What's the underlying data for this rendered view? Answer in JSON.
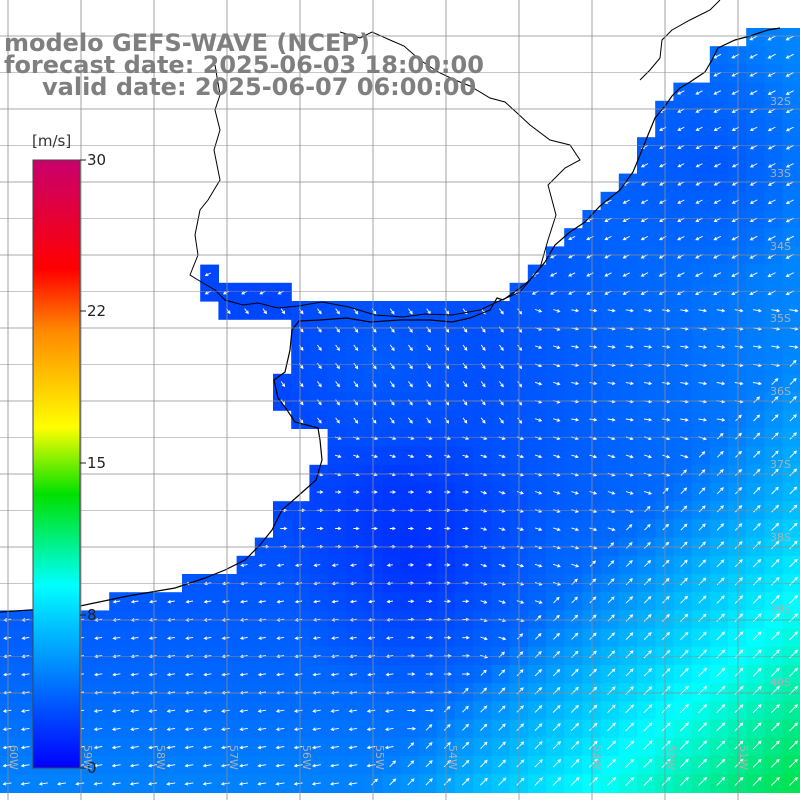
{
  "title": {
    "line1": "modelo GEFS-WAVE (NCEP)",
    "line2": "forecast date: 2025-06-03 18:00:00",
    "line3": "valid date: 2025-06-07 06:00:00"
  },
  "colorbar": {
    "unit": "[m/s]",
    "min": 0,
    "max": 30,
    "ticks": [
      "30",
      "22",
      "15",
      "8",
      "0"
    ],
    "colors": [
      "#0000ff",
      "#00b4ff",
      "#00ffff",
      "#00dc00",
      "#ffff00",
      "#ff8c00",
      "#ff0000",
      "#c8006e"
    ]
  },
  "map": {
    "land_color": "#ffffff",
    "coast_color": "#000000",
    "grid_color": "#8c8c8c",
    "lat_labels": [
      "32S",
      "33S",
      "34S",
      "35S",
      "36S",
      "37S",
      "38S",
      "39S",
      "40S"
    ],
    "lon_labels": [
      "60W",
      "59W",
      "58W",
      "57W",
      "56W",
      "55W",
      "54W",
      "53W",
      "52W",
      "51W"
    ]
  }
}
